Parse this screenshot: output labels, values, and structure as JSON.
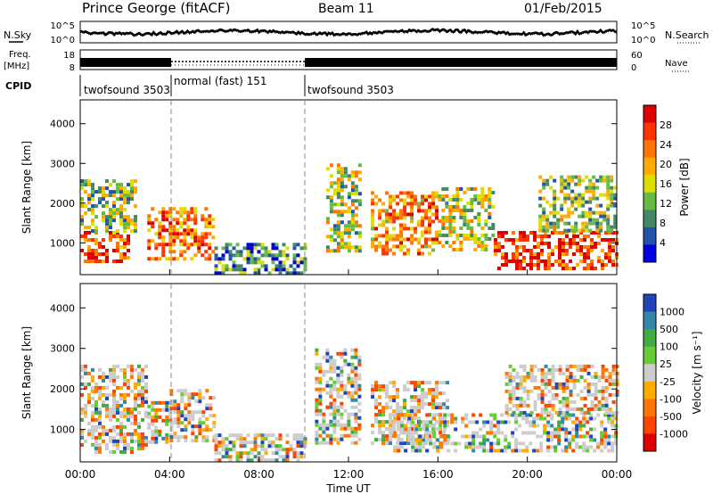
{
  "header": {
    "station": "Prince George (fitACF)",
    "beam": "Beam 11",
    "date": "01/Feb/2015"
  },
  "side_labels": {
    "nsky": "N.Sky",
    "nsearch": "N.Search",
    "freq": "Freq.",
    "freq_unit": "[MHz]",
    "nave": "Nave",
    "cpid": "CPID"
  },
  "noise_panel": {
    "left_ticks": [
      "10^5",
      "10^0"
    ],
    "right_ticks": [
      "10^5",
      "10^0"
    ]
  },
  "freq_panel": {
    "left_ticks": [
      "18",
      "8"
    ],
    "right_ticks": [
      "60",
      "0"
    ]
  },
  "cpid_segments": [
    {
      "label": "twofsound 3503",
      "start_hour": 0,
      "end_hour": 4
    },
    {
      "label": "normal (fast) 151",
      "start_hour": 4,
      "end_hour": 10
    },
    {
      "label": "twofsound 3503",
      "start_hour": 10,
      "end_hour": 24
    }
  ],
  "time_axis": {
    "label": "Time UT",
    "ticks": [
      "00:00",
      "04:00",
      "08:00",
      "12:00",
      "16:00",
      "20:00",
      "00:00"
    ]
  },
  "chart_data": [
    {
      "type": "heatmap",
      "panel": "power",
      "ylabel": "Slant Range [km]",
      "yticks": [
        "4000",
        "3000",
        "2000",
        "1000"
      ],
      "ylim": [
        200,
        4600
      ],
      "xlim": [
        0,
        24
      ],
      "colorbar": {
        "label": "Power [dB]",
        "ticks": [
          "28",
          "24",
          "20",
          "16",
          "12",
          "8",
          "4"
        ],
        "colors": [
          "#dd0000",
          "#ff3300",
          "#ff7700",
          "#ffaa00",
          "#dddd00",
          "#66bb44",
          "#448866",
          "#2255aa",
          "#0000dd"
        ]
      },
      "echo_regions": [
        {
          "t0": 0.0,
          "t1": 2.2,
          "r0": 500,
          "r1": 1300,
          "level": 0.85
        },
        {
          "t0": 0.0,
          "t1": 2.5,
          "r0": 1300,
          "r1": 2600,
          "level": 0.4
        },
        {
          "t0": 3.0,
          "t1": 6.0,
          "r0": 600,
          "r1": 1900,
          "level": 0.75
        },
        {
          "t0": 6.0,
          "t1": 10.0,
          "r0": 250,
          "r1": 1000,
          "level": 0.25
        },
        {
          "t0": 11.0,
          "t1": 12.5,
          "r0": 800,
          "r1": 3000,
          "level": 0.45
        },
        {
          "t0": 13.0,
          "t1": 16.0,
          "r0": 700,
          "r1": 2300,
          "level": 0.7
        },
        {
          "t0": 16.0,
          "t1": 18.5,
          "r0": 800,
          "r1": 2400,
          "level": 0.45
        },
        {
          "t0": 18.5,
          "t1": 24.0,
          "r0": 400,
          "r1": 1300,
          "level": 0.9
        },
        {
          "t0": 20.5,
          "t1": 24.0,
          "r0": 1300,
          "r1": 2700,
          "level": 0.4
        }
      ]
    },
    {
      "type": "heatmap",
      "panel": "velocity",
      "ylabel": "Slant Range [km]",
      "yticks": [
        "4000",
        "3000",
        "2000",
        "1000"
      ],
      "ylim": [
        200,
        4600
      ],
      "xlim": [
        0,
        24
      ],
      "colorbar": {
        "label": "Velocity [m s⁻¹]",
        "ticks": [
          "1000",
          "500",
          "100",
          "25",
          "-25",
          "-100",
          "-500",
          "-1000"
        ],
        "colors": [
          "#2244bb",
          "#3388aa",
          "#44aa44",
          "#66cc33",
          "#cccccc",
          "#ffaa00",
          "#ff7700",
          "#ff4400",
          "#dd0000"
        ]
      },
      "echo_regions": [
        {
          "t0": 0.0,
          "t1": 3.0,
          "r0": 400,
          "r1": 2600,
          "level": 0.75
        },
        {
          "t0": 3.0,
          "t1": 4.0,
          "r0": 700,
          "r1": 1700,
          "level": 0.5
        },
        {
          "t0": 4.0,
          "t1": 6.0,
          "r0": 700,
          "r1": 2000,
          "level": 0.85
        },
        {
          "t0": 6.0,
          "t1": 10.0,
          "r0": 250,
          "r1": 900,
          "level": 0.55
        },
        {
          "t0": 10.5,
          "t1": 12.5,
          "r0": 700,
          "r1": 3000,
          "level": 0.65
        },
        {
          "t0": 13.0,
          "t1": 16.5,
          "r0": 700,
          "r1": 2200,
          "level": 0.75
        },
        {
          "t0": 14.0,
          "t1": 24.0,
          "r0": 500,
          "r1": 1400,
          "level": 0.5
        },
        {
          "t0": 19.0,
          "t1": 24.0,
          "r0": 1400,
          "r1": 2600,
          "level": 0.8
        }
      ]
    }
  ]
}
